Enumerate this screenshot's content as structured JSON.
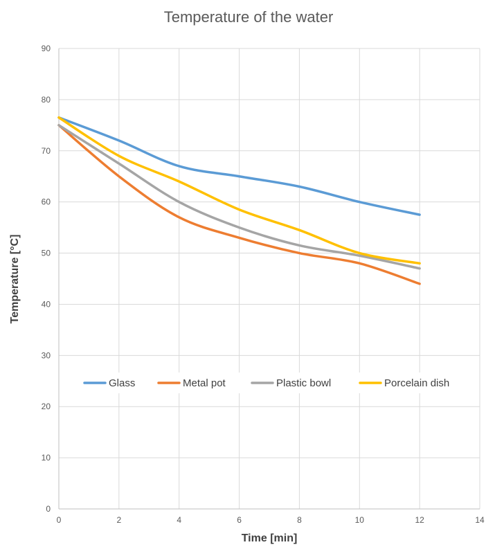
{
  "chart_data": {
    "type": "line",
    "title": "Temperature of the water",
    "xlabel": "Time [min]",
    "ylabel": "Temperature [°C]",
    "xlim": [
      0,
      14
    ],
    "ylim": [
      0,
      90
    ],
    "xticks": [
      0,
      2,
      4,
      6,
      8,
      10,
      12,
      14
    ],
    "yticks": [
      0,
      10,
      20,
      30,
      40,
      50,
      60,
      70,
      80,
      90
    ],
    "grid": true,
    "smooth": true,
    "legend_position": "center",
    "series": [
      {
        "name": "Glass",
        "color": "#5b9bd5",
        "x": [
          0,
          2,
          4,
          6,
          8,
          10,
          12
        ],
        "y": [
          76.5,
          72,
          67,
          65,
          63,
          60,
          57.5
        ]
      },
      {
        "name": "Metal pot",
        "color": "#ed7d31",
        "x": [
          0,
          2,
          4,
          6,
          8,
          10,
          12
        ],
        "y": [
          75,
          65,
          57,
          53,
          50,
          48,
          44
        ]
      },
      {
        "name": "Plastic bowl",
        "color": "#a5a5a5",
        "x": [
          0,
          2,
          4,
          6,
          8,
          10,
          12
        ],
        "y": [
          75,
          67.5,
          60,
          55,
          51.5,
          49.5,
          47
        ]
      },
      {
        "name": "Porcelain dish",
        "color": "#ffc000",
        "x": [
          0,
          2,
          4,
          6,
          8,
          10,
          12
        ],
        "y": [
          76.5,
          69,
          64,
          58.5,
          54.5,
          50,
          48
        ]
      }
    ]
  }
}
